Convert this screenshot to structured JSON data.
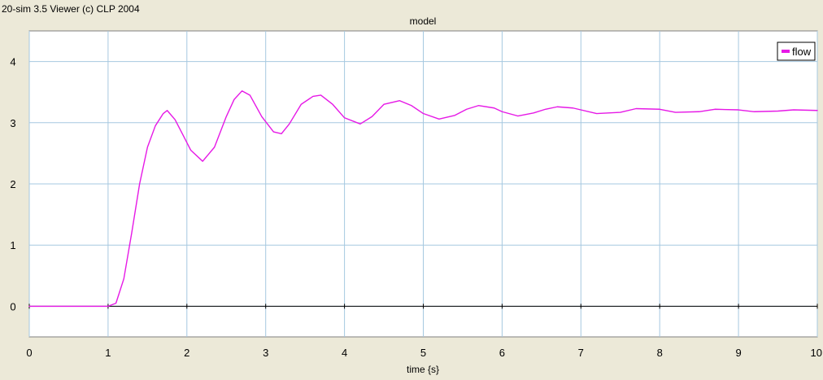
{
  "window": {
    "caption": "20-sim 3.5 Viewer (c) CLP 2004"
  },
  "chart_data": {
    "type": "line",
    "title": "model",
    "xlabel": "time {s}",
    "ylabel": "",
    "xlim": [
      0,
      10
    ],
    "ylim": [
      -0.5,
      4.5
    ],
    "x_ticks": [
      0,
      1,
      2,
      3,
      4,
      5,
      6,
      7,
      8,
      9,
      10
    ],
    "x_tick_labels": [
      "0",
      "1",
      "2",
      "3",
      "4",
      "5",
      "6",
      "7",
      "8",
      "9",
      "10"
    ],
    "y_ticks": [
      0,
      1,
      2,
      3,
      4
    ],
    "y_tick_labels": [
      "0",
      "1",
      "2",
      "3",
      "4"
    ],
    "grid": true,
    "legend": {
      "position": "top-right",
      "entries": [
        "flow"
      ]
    },
    "zero_line": {
      "y": 0,
      "color": "#000000"
    },
    "colors": {
      "plot_background": "#ffffff",
      "frame_background": "#ece9d8",
      "grid": "#a6c8e0",
      "series": "#e619e6",
      "axis": "#000000"
    },
    "series": [
      {
        "name": "flow",
        "x": [
          0,
          1.0,
          1.1,
          1.2,
          1.3,
          1.4,
          1.5,
          1.6,
          1.7,
          1.75,
          1.85,
          1.95,
          2.05,
          2.2,
          2.35,
          2.5,
          2.6,
          2.7,
          2.8,
          2.95,
          3.1,
          3.2,
          3.3,
          3.45,
          3.6,
          3.7,
          3.85,
          4.0,
          4.2,
          4.35,
          4.5,
          4.7,
          4.85,
          5.0,
          5.2,
          5.4,
          5.55,
          5.7,
          5.9,
          6.0,
          6.2,
          6.4,
          6.55,
          6.7,
          6.9,
          7.2,
          7.5,
          7.7,
          8.0,
          8.2,
          8.5,
          8.7,
          9.0,
          9.2,
          9.5,
          9.7,
          10.0
        ],
        "values": [
          0,
          0,
          0.05,
          0.45,
          1.2,
          2.0,
          2.6,
          2.95,
          3.15,
          3.2,
          3.05,
          2.8,
          2.55,
          2.37,
          2.6,
          3.1,
          3.38,
          3.52,
          3.45,
          3.1,
          2.85,
          2.82,
          2.98,
          3.3,
          3.43,
          3.45,
          3.3,
          3.08,
          2.98,
          3.1,
          3.3,
          3.36,
          3.28,
          3.15,
          3.06,
          3.12,
          3.22,
          3.28,
          3.24,
          3.18,
          3.11,
          3.16,
          3.22,
          3.26,
          3.24,
          3.15,
          3.17,
          3.23,
          3.22,
          3.17,
          3.18,
          3.22,
          3.21,
          3.18,
          3.19,
          3.21,
          3.2
        ]
      }
    ]
  }
}
